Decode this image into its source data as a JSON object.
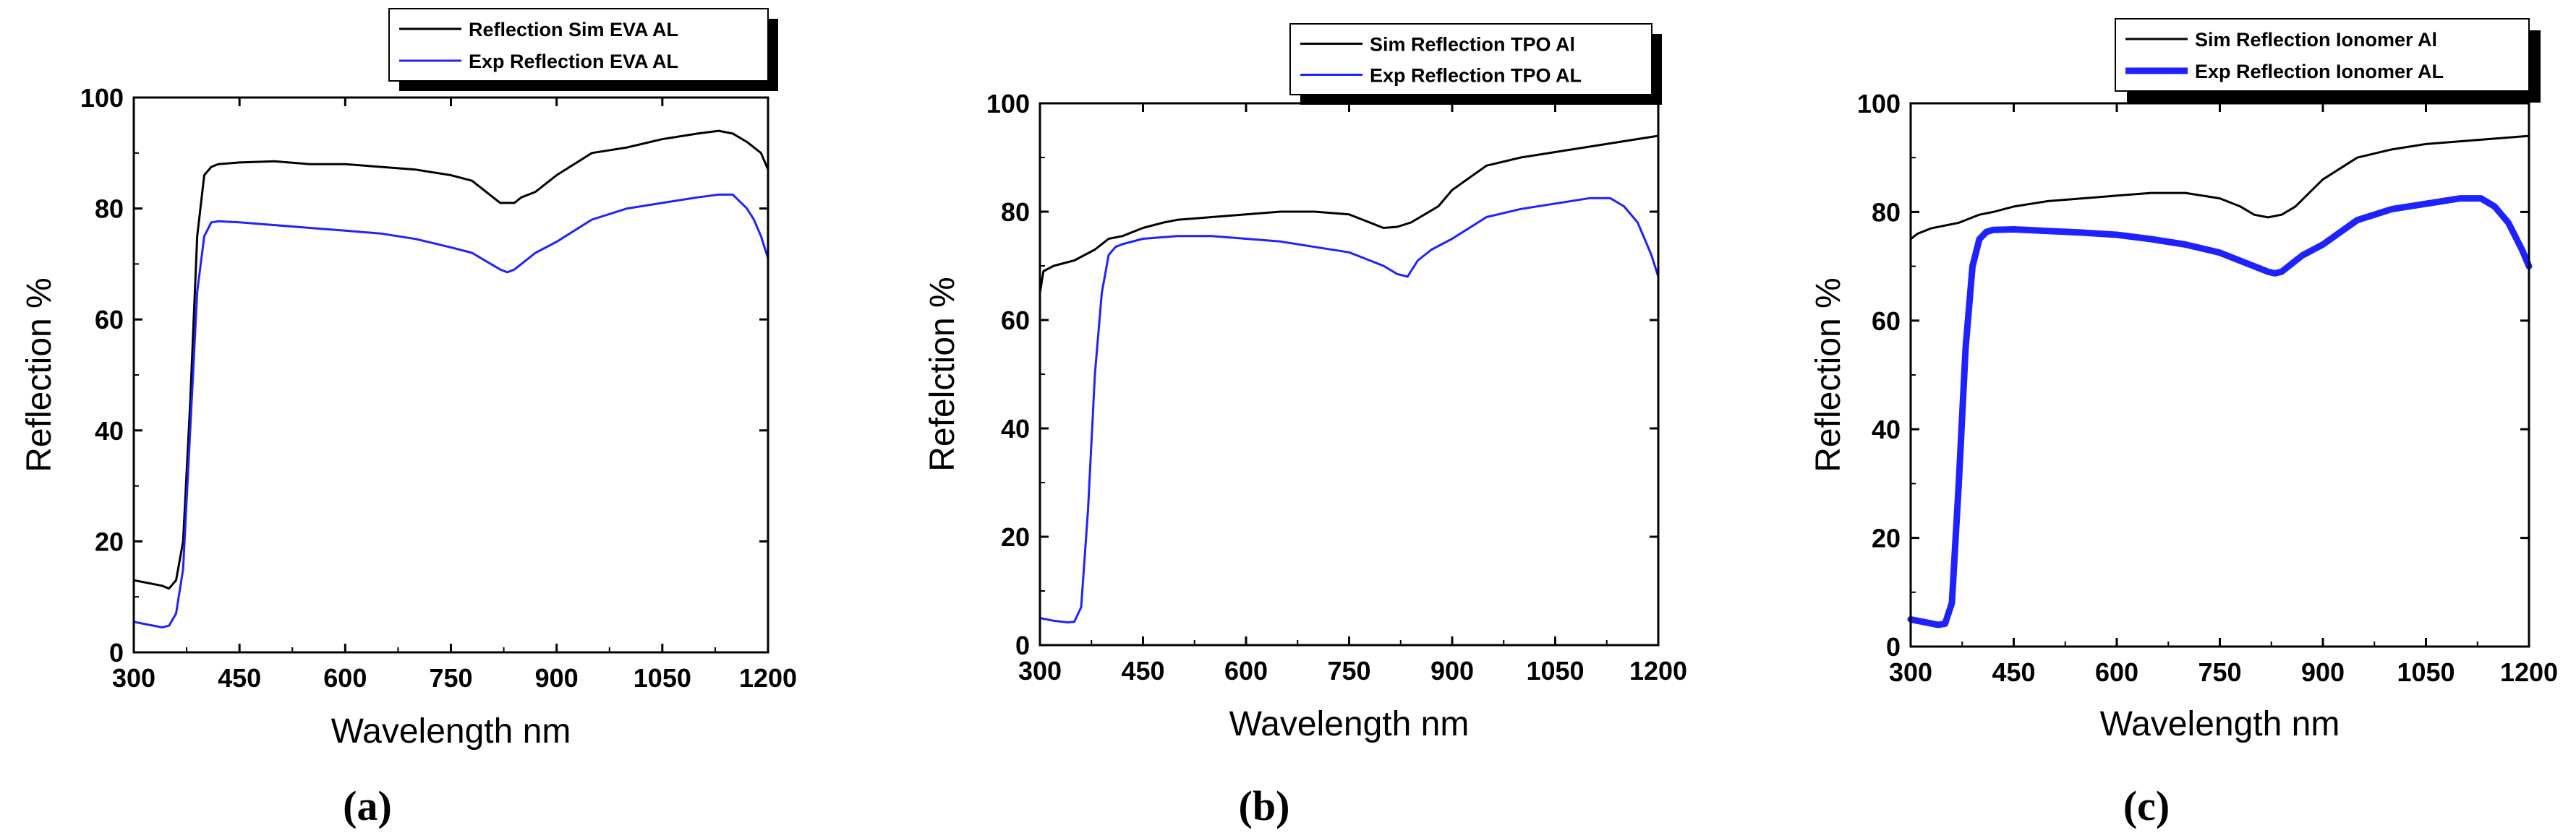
{
  "chart_data": [
    {
      "type": "line",
      "panel_label": "(a)",
      "xlabel": "Wavelength nm",
      "ylabel": "Reflection %",
      "xlim": [
        300,
        1200
      ],
      "ylim": [
        0,
        100
      ],
      "xticks": [
        "300",
        "450",
        "600",
        "750",
        "900",
        "1050",
        "1200"
      ],
      "yticks": [
        "0",
        "20",
        "40",
        "60",
        "80",
        "100"
      ],
      "legend_position": "top-right",
      "series": [
        {
          "name": "Reflection Sim EVA AL",
          "color": "#000000",
          "width": "thin",
          "x": [
            300,
            320,
            340,
            350,
            360,
            370,
            380,
            390,
            400,
            410,
            420,
            450,
            500,
            550,
            600,
            650,
            700,
            750,
            780,
            800,
            820,
            840,
            850,
            870,
            900,
            950,
            1000,
            1050,
            1100,
            1130,
            1150,
            1170,
            1190,
            1200
          ],
          "y": [
            13,
            12.5,
            12,
            11.5,
            13,
            20,
            45,
            75,
            86,
            87.5,
            88,
            88.3,
            88.5,
            88,
            88,
            87.5,
            87,
            86,
            85,
            83,
            81,
            81,
            82,
            83,
            86,
            90,
            91,
            92.5,
            93.5,
            94,
            93.5,
            92,
            90,
            87
          ]
        },
        {
          "name": "Exp Reflection EVA AL",
          "color": "#1e22ff",
          "width": "thin",
          "x": [
            300,
            320,
            340,
            350,
            360,
            370,
            380,
            390,
            400,
            410,
            420,
            450,
            500,
            550,
            600,
            650,
            700,
            750,
            780,
            800,
            820,
            830,
            840,
            850,
            870,
            900,
            950,
            1000,
            1050,
            1100,
            1130,
            1150,
            1170,
            1180,
            1190,
            1200
          ],
          "y": [
            5.5,
            5,
            4.5,
            4.8,
            7,
            15,
            40,
            65,
            75,
            77.5,
            77.7,
            77.5,
            77,
            76.5,
            76,
            75.5,
            74.5,
            73,
            72,
            70.5,
            69,
            68.5,
            69,
            70,
            72,
            74,
            78,
            80,
            81,
            82,
            82.5,
            82.5,
            80,
            78,
            75,
            71
          ]
        }
      ]
    },
    {
      "type": "line",
      "panel_label": "(b)",
      "xlabel": "Wavelength nm",
      "ylabel": "Refelction %",
      "xlim": [
        300,
        1200
      ],
      "ylim": [
        0,
        100
      ],
      "xticks": [
        "300",
        "450",
        "600",
        "750",
        "900",
        "1050",
        "1200"
      ],
      "yticks": [
        "0",
        "20",
        "40",
        "60",
        "80",
        "100"
      ],
      "legend_position": "top-right",
      "series": [
        {
          "name": "Sim Reflection TPO Al",
          "color": "#000000",
          "width": "thin",
          "x": [
            300,
            305,
            320,
            350,
            380,
            400,
            420,
            450,
            480,
            500,
            550,
            600,
            650,
            700,
            750,
            780,
            800,
            820,
            840,
            860,
            880,
            900,
            950,
            1000,
            1050,
            1100,
            1150,
            1200
          ],
          "y": [
            65,
            69,
            70,
            71,
            73,
            75,
            75.5,
            77,
            78,
            78.5,
            79,
            79.5,
            80,
            80,
            79.5,
            78,
            77,
            77.2,
            78,
            79.5,
            81,
            84,
            88.5,
            90,
            91,
            92,
            93,
            94
          ]
        },
        {
          "name": "Exp Reflection TPO AL",
          "color": "#1e22ff",
          "width": "thin",
          "x": [
            300,
            320,
            340,
            350,
            360,
            370,
            380,
            390,
            400,
            410,
            420,
            450,
            500,
            550,
            600,
            650,
            700,
            750,
            780,
            800,
            820,
            835,
            840,
            850,
            870,
            900,
            950,
            1000,
            1050,
            1100,
            1130,
            1150,
            1170,
            1190,
            1200
          ],
          "y": [
            5,
            4.5,
            4.2,
            4.3,
            7,
            25,
            50,
            65,
            72,
            73.5,
            74,
            75,
            75.5,
            75.5,
            75,
            74.5,
            73.5,
            72.5,
            71,
            70,
            68.5,
            68,
            69,
            71,
            73,
            75,
            79,
            80.5,
            81.5,
            82.5,
            82.5,
            81,
            78,
            72,
            68
          ]
        }
      ]
    },
    {
      "type": "line",
      "panel_label": "(c)",
      "xlabel": "Wavelength nm",
      "ylabel": "Reflection %",
      "xlim": [
        300,
        1200
      ],
      "ylim": [
        0,
        100
      ],
      "xticks": [
        "300",
        "450",
        "600",
        "750",
        "900",
        "1050",
        "1200"
      ],
      "yticks": [
        "0",
        "20",
        "40",
        "60",
        "80",
        "100"
      ],
      "legend_position": "top-right",
      "series": [
        {
          "name": "Sim Reflection Ionomer Al",
          "color": "#000000",
          "width": "thin",
          "x": [
            300,
            310,
            330,
            350,
            370,
            390,
            400,
            420,
            450,
            500,
            550,
            600,
            650,
            700,
            750,
            780,
            800,
            820,
            840,
            860,
            880,
            900,
            950,
            1000,
            1050,
            1100,
            1150,
            1200
          ],
          "y": [
            75,
            76,
            77,
            77.5,
            78,
            79,
            79.5,
            80,
            81,
            82,
            82.5,
            83,
            83.5,
            83.5,
            82.5,
            81,
            79.5,
            79,
            79.5,
            81,
            83.5,
            86,
            90,
            91.5,
            92.5,
            93,
            93.5,
            94
          ]
        },
        {
          "name": "Exp Reflection Ionomer AL",
          "color": "#1e22ff",
          "width": "thick",
          "x": [
            300,
            320,
            340,
            350,
            360,
            370,
            380,
            390,
            400,
            410,
            420,
            450,
            500,
            550,
            600,
            650,
            700,
            750,
            780,
            800,
            820,
            830,
            840,
            850,
            870,
            900,
            950,
            1000,
            1050,
            1100,
            1130,
            1150,
            1170,
            1190,
            1200
          ],
          "y": [
            5,
            4.5,
            4,
            4.2,
            8,
            30,
            55,
            70,
            75,
            76.3,
            76.7,
            76.8,
            76.5,
            76.2,
            75.8,
            75,
            74,
            72.5,
            71,
            70,
            69,
            68.7,
            69,
            70,
            72,
            74,
            78.5,
            80.5,
            81.5,
            82.5,
            82.5,
            81,
            78,
            73,
            70
          ]
        }
      ]
    }
  ]
}
